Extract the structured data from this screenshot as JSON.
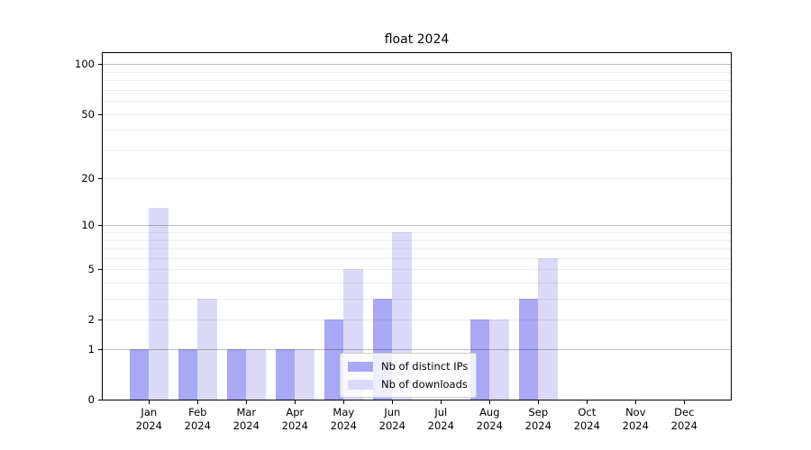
{
  "title": "float 2024",
  "chart_data": {
    "type": "bar",
    "title": "float 2024",
    "categories": [
      "Jan",
      "Feb",
      "Mar",
      "Apr",
      "May",
      "Jun",
      "Jul",
      "Aug",
      "Sep",
      "Oct",
      "Nov",
      "Dec"
    ],
    "category_year": "2024",
    "series": [
      {
        "name": "Nb of distinct IPs",
        "color": "#a8a8f4",
        "values": [
          1,
          1,
          1,
          1,
          2,
          3,
          0,
          2,
          3,
          0,
          0,
          0
        ]
      },
      {
        "name": "Nb of downloads",
        "color": "#dadaf8",
        "values": [
          13,
          3,
          1,
          1,
          5,
          9,
          0,
          2,
          6,
          0,
          0,
          0
        ]
      }
    ],
    "y_axis": {
      "scale": "log1p",
      "min": 0,
      "top_value": 116.8,
      "ticks": [
        0,
        1,
        2,
        5,
        10,
        20,
        50,
        100
      ],
      "major_grid": [
        1,
        10,
        100
      ],
      "minor_grid": [
        2,
        3,
        4,
        5,
        6,
        7,
        8,
        9,
        20,
        30,
        40,
        50,
        60,
        70,
        80,
        90
      ]
    },
    "legend": {
      "position": "lower center"
    },
    "grid": true
  }
}
